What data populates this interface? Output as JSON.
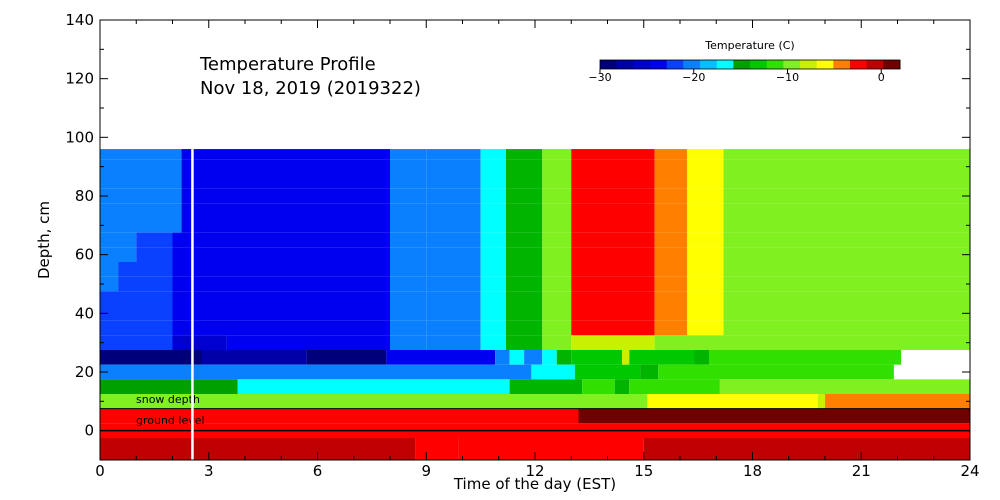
{
  "chart_data": {
    "type": "heatmap",
    "title": "Temperature Profile",
    "subtitle": "Nov 18, 2019 (2019322)",
    "xlabel": "Time of the day (EST)",
    "ylabel": "Depth, cm",
    "xlim": [
      0,
      24
    ],
    "ylim": [
      -10,
      140
    ],
    "x_ticks": [
      0,
      3,
      6,
      9,
      12,
      15,
      18,
      21,
      24
    ],
    "y_ticks": [
      0,
      20,
      40,
      60,
      80,
      100,
      120,
      140
    ],
    "colorbar": {
      "label": "Temperature (C)",
      "range": [
        -30,
        2
      ],
      "ticks": [
        -30,
        -20,
        -10,
        0
      ],
      "colors": [
        "#00007a",
        "#0000a8",
        "#0000d0",
        "#0000f0",
        "#0a40ff",
        "#0a80ff",
        "#00c0ff",
        "#00ffff",
        "#00a000",
        "#00c800",
        "#32e000",
        "#80f020",
        "#c8f000",
        "#ffff00",
        "#ff8000",
        "#ff0000",
        "#c00000",
        "#700000"
      ]
    },
    "annotations": [
      "snow depth",
      "ground level"
    ],
    "current_time_marker": 2.55,
    "rows": [
      {
        "depth": 95,
        "segments": [
          [
            0,
            2.25,
            "#0a80ff"
          ],
          [
            2.25,
            8,
            "#0000f0"
          ],
          [
            8,
            9,
            "#0a80ff"
          ],
          [
            9,
            10.5,
            "#0a80ff"
          ],
          [
            10.5,
            11.2,
            "#00ffff"
          ],
          [
            11.2,
            12.2,
            "#00b400"
          ],
          [
            12.2,
            13,
            "#80f020"
          ],
          [
            13,
            15.3,
            "#ff0000"
          ],
          [
            15.3,
            16.2,
            "#ff8000"
          ],
          [
            16.2,
            17.2,
            "#ffff00"
          ],
          [
            17.2,
            24,
            "#80f020"
          ]
        ]
      },
      {
        "depth": 90,
        "segments": [
          [
            0,
            2.25,
            "#0a80ff"
          ],
          [
            2.25,
            8,
            "#0000f0"
          ],
          [
            8,
            9,
            "#0a80ff"
          ],
          [
            9,
            10.5,
            "#0a80ff"
          ],
          [
            10.5,
            11.2,
            "#00ffff"
          ],
          [
            11.2,
            12.2,
            "#00b400"
          ],
          [
            12.2,
            13,
            "#80f020"
          ],
          [
            13,
            15.3,
            "#ff0000"
          ],
          [
            15.3,
            16.2,
            "#ff8000"
          ],
          [
            16.2,
            17.2,
            "#ffff00"
          ],
          [
            17.2,
            24,
            "#80f020"
          ]
        ]
      },
      {
        "depth": 85,
        "segments": [
          [
            0,
            2.25,
            "#0a80ff"
          ],
          [
            2.25,
            8,
            "#0000f0"
          ],
          [
            8,
            9,
            "#0a80ff"
          ],
          [
            9,
            10.5,
            "#0a80ff"
          ],
          [
            10.5,
            11.2,
            "#00ffff"
          ],
          [
            11.2,
            12.2,
            "#00b400"
          ],
          [
            12.2,
            13,
            "#80f020"
          ],
          [
            13,
            15.3,
            "#ff0000"
          ],
          [
            15.3,
            16.2,
            "#ff8000"
          ],
          [
            16.2,
            17.2,
            "#ffff00"
          ],
          [
            17.2,
            24,
            "#80f020"
          ]
        ]
      },
      {
        "depth": 80,
        "segments": [
          [
            0,
            2.25,
            "#0a80ff"
          ],
          [
            2.25,
            8,
            "#0000f0"
          ],
          [
            8,
            9,
            "#0a80ff"
          ],
          [
            9,
            10.5,
            "#0a80ff"
          ],
          [
            10.5,
            11.2,
            "#00ffff"
          ],
          [
            11.2,
            12.2,
            "#00b400"
          ],
          [
            12.2,
            13,
            "#80f020"
          ],
          [
            13,
            15.3,
            "#ff0000"
          ],
          [
            15.3,
            16.2,
            "#ff8000"
          ],
          [
            16.2,
            17.2,
            "#ffff00"
          ],
          [
            17.2,
            24,
            "#80f020"
          ]
        ]
      },
      {
        "depth": 75,
        "segments": [
          [
            0,
            2.25,
            "#0a80ff"
          ],
          [
            2.25,
            8,
            "#0000f0"
          ],
          [
            8,
            9,
            "#0a80ff"
          ],
          [
            9,
            10.5,
            "#0a80ff"
          ],
          [
            10.5,
            11.2,
            "#00ffff"
          ],
          [
            11.2,
            12.2,
            "#00b400"
          ],
          [
            12.2,
            13,
            "#80f020"
          ],
          [
            13,
            15.3,
            "#ff0000"
          ],
          [
            15.3,
            16.2,
            "#ff8000"
          ],
          [
            16.2,
            17.2,
            "#ffff00"
          ],
          [
            17.2,
            24,
            "#80f020"
          ]
        ]
      },
      {
        "depth": 70,
        "segments": [
          [
            0,
            2.25,
            "#0a80ff"
          ],
          [
            2.25,
            8,
            "#0000f0"
          ],
          [
            8,
            9,
            "#0a80ff"
          ],
          [
            9,
            10.5,
            "#0a80ff"
          ],
          [
            10.5,
            11.2,
            "#00ffff"
          ],
          [
            11.2,
            12.2,
            "#00b400"
          ],
          [
            12.2,
            13,
            "#80f020"
          ],
          [
            13,
            15.3,
            "#ff0000"
          ],
          [
            15.3,
            16.2,
            "#ff8000"
          ],
          [
            16.2,
            17.2,
            "#ffff00"
          ],
          [
            17.2,
            24,
            "#80f020"
          ]
        ]
      },
      {
        "depth": 65,
        "segments": [
          [
            0,
            1,
            "#0a80ff"
          ],
          [
            1,
            2,
            "#0a40ff"
          ],
          [
            2,
            8,
            "#0000f0"
          ],
          [
            8,
            9,
            "#0a80ff"
          ],
          [
            9,
            10.5,
            "#0a80ff"
          ],
          [
            10.5,
            11.2,
            "#00ffff"
          ],
          [
            11.2,
            12.2,
            "#00b400"
          ],
          [
            12.2,
            13,
            "#80f020"
          ],
          [
            13,
            15.3,
            "#ff0000"
          ],
          [
            15.3,
            16.2,
            "#ff8000"
          ],
          [
            16.2,
            17.2,
            "#ffff00"
          ],
          [
            17.2,
            24,
            "#80f020"
          ]
        ]
      },
      {
        "depth": 60,
        "segments": [
          [
            0,
            1,
            "#0a80ff"
          ],
          [
            1,
            2,
            "#0a40ff"
          ],
          [
            2,
            8,
            "#0000f0"
          ],
          [
            8,
            9,
            "#0a80ff"
          ],
          [
            9,
            10.5,
            "#0a80ff"
          ],
          [
            10.5,
            11.2,
            "#00ffff"
          ],
          [
            11.2,
            12.2,
            "#00b400"
          ],
          [
            12.2,
            13,
            "#80f020"
          ],
          [
            13,
            15.3,
            "#ff0000"
          ],
          [
            15.3,
            16.2,
            "#ff8000"
          ],
          [
            16.2,
            17.2,
            "#ffff00"
          ],
          [
            17.2,
            24,
            "#80f020"
          ]
        ]
      },
      {
        "depth": 55,
        "segments": [
          [
            0,
            0.5,
            "#0a80ff"
          ],
          [
            0.5,
            2,
            "#0a40ff"
          ],
          [
            2,
            8,
            "#0000f0"
          ],
          [
            8,
            9,
            "#0a80ff"
          ],
          [
            9,
            10.5,
            "#0a80ff"
          ],
          [
            10.5,
            11.2,
            "#00ffff"
          ],
          [
            11.2,
            12.2,
            "#00b400"
          ],
          [
            12.2,
            13,
            "#80f020"
          ],
          [
            13,
            15.3,
            "#ff0000"
          ],
          [
            15.3,
            16.2,
            "#ff8000"
          ],
          [
            16.2,
            17.2,
            "#ffff00"
          ],
          [
            17.2,
            24,
            "#80f020"
          ]
        ]
      },
      {
        "depth": 50,
        "segments": [
          [
            0,
            0.5,
            "#0a80ff"
          ],
          [
            0.5,
            2,
            "#0a40ff"
          ],
          [
            2,
            8,
            "#0000f0"
          ],
          [
            8,
            9,
            "#0a80ff"
          ],
          [
            9,
            10.5,
            "#0a80ff"
          ],
          [
            10.5,
            11.2,
            "#00ffff"
          ],
          [
            11.2,
            12.2,
            "#00b400"
          ],
          [
            12.2,
            13,
            "#80f020"
          ],
          [
            13,
            15.3,
            "#ff0000"
          ],
          [
            15.3,
            16.2,
            "#ff8000"
          ],
          [
            16.2,
            17.2,
            "#ffff00"
          ],
          [
            17.2,
            24,
            "#80f020"
          ]
        ]
      },
      {
        "depth": 45,
        "segments": [
          [
            0,
            2,
            "#0a40ff"
          ],
          [
            2,
            8,
            "#0000f0"
          ],
          [
            8,
            9,
            "#0a80ff"
          ],
          [
            9,
            10.5,
            "#0a80ff"
          ],
          [
            10.5,
            11.2,
            "#00ffff"
          ],
          [
            11.2,
            12.2,
            "#00b400"
          ],
          [
            12.2,
            13,
            "#80f020"
          ],
          [
            13,
            15.3,
            "#ff0000"
          ],
          [
            15.3,
            16.2,
            "#ff8000"
          ],
          [
            16.2,
            17.2,
            "#ffff00"
          ],
          [
            17.2,
            24,
            "#80f020"
          ]
        ]
      },
      {
        "depth": 40,
        "segments": [
          [
            0,
            2,
            "#0a40ff"
          ],
          [
            2,
            8,
            "#0000f0"
          ],
          [
            8,
            9,
            "#0a80ff"
          ],
          [
            9,
            10.5,
            "#0a80ff"
          ],
          [
            10.5,
            11.2,
            "#00ffff"
          ],
          [
            11.2,
            12.2,
            "#00b400"
          ],
          [
            12.2,
            13,
            "#80f020"
          ],
          [
            13,
            15.3,
            "#ff0000"
          ],
          [
            15.3,
            16.2,
            "#ff8000"
          ],
          [
            16.2,
            17.2,
            "#ffff00"
          ],
          [
            17.2,
            24,
            "#80f020"
          ]
        ]
      },
      {
        "depth": 35,
        "segments": [
          [
            0,
            2,
            "#0a40ff"
          ],
          [
            2,
            8,
            "#0000f0"
          ],
          [
            8,
            9,
            "#0a80ff"
          ],
          [
            9,
            10.5,
            "#0a80ff"
          ],
          [
            10.5,
            11.2,
            "#00ffff"
          ],
          [
            11.2,
            12.2,
            "#00b400"
          ],
          [
            12.2,
            13,
            "#80f020"
          ],
          [
            13,
            15.3,
            "#ff0000"
          ],
          [
            15.3,
            16.2,
            "#ff8000"
          ],
          [
            16.2,
            17.2,
            "#ffff00"
          ],
          [
            17.2,
            24,
            "#80f020"
          ]
        ]
      },
      {
        "depth": 30,
        "segments": [
          [
            0,
            2,
            "#0a40ff"
          ],
          [
            2,
            3.5,
            "#0000d0"
          ],
          [
            3.5,
            8,
            "#0000f0"
          ],
          [
            8,
            9,
            "#0a80ff"
          ],
          [
            9,
            10.5,
            "#0a80ff"
          ],
          [
            10.5,
            11.2,
            "#00ffff"
          ],
          [
            11.2,
            12.2,
            "#00b400"
          ],
          [
            12.2,
            13,
            "#80f020"
          ],
          [
            13,
            15.3,
            "#c8f000"
          ],
          [
            15.3,
            24,
            "#80f020"
          ]
        ]
      },
      {
        "depth": 25,
        "segments": [
          [
            0,
            2.8,
            "#00007a"
          ],
          [
            2.8,
            5.7,
            "#0000a8"
          ],
          [
            5.7,
            7.9,
            "#00007a"
          ],
          [
            7.9,
            10.9,
            "#0000f0"
          ],
          [
            10.9,
            11.3,
            "#0a80ff"
          ],
          [
            11.3,
            11.7,
            "#00ffff"
          ],
          [
            11.7,
            12.2,
            "#0a80ff"
          ],
          [
            12.2,
            12.6,
            "#00ffff"
          ],
          [
            12.6,
            13,
            "#00b400"
          ],
          [
            13,
            14.4,
            "#00c800"
          ],
          [
            14.4,
            14.6,
            "#c8f000"
          ],
          [
            14.6,
            16.4,
            "#00c800"
          ],
          [
            16.4,
            16.8,
            "#00b400"
          ],
          [
            16.8,
            22.1,
            "#32e000"
          ]
        ]
      },
      {
        "depth": 20,
        "segments": [
          [
            0,
            11.9,
            "#0a80ff"
          ],
          [
            11.9,
            13.1,
            "#00ffff"
          ],
          [
            13.1,
            14.9,
            "#00c800"
          ],
          [
            14.9,
            15.4,
            "#00b400"
          ],
          [
            15.4,
            21.9,
            "#32e000"
          ]
        ]
      },
      {
        "depth": 15,
        "segments": [
          [
            0,
            3.8,
            "#00a000"
          ],
          [
            3.8,
            11.3,
            "#00ffff"
          ],
          [
            11.3,
            13.3,
            "#00b400"
          ],
          [
            13.3,
            14.2,
            "#32e000"
          ],
          [
            14.2,
            14.6,
            "#00b400"
          ],
          [
            14.6,
            17.1,
            "#32e000"
          ],
          [
            17.1,
            24,
            "#80f020"
          ]
        ]
      },
      {
        "depth": 10,
        "segments": [
          [
            0,
            15.1,
            "#80f020"
          ],
          [
            15.1,
            19.8,
            "#ffff00"
          ],
          [
            19.8,
            20,
            "#c8f000"
          ],
          [
            20,
            24,
            "#ff8000"
          ]
        ]
      },
      {
        "depth": 5,
        "segments": [
          [
            0,
            13.2,
            "#ff0000"
          ],
          [
            13.2,
            24,
            "#700000"
          ]
        ]
      },
      {
        "depth": 0,
        "segments": [
          [
            0,
            24,
            "#ff0000"
          ]
        ]
      },
      {
        "depth": -5,
        "segments": [
          [
            0,
            8.7,
            "#c00000"
          ],
          [
            8.7,
            9.9,
            "#ff0000"
          ],
          [
            9.9,
            15,
            "#ff0000"
          ],
          [
            15,
            24,
            "#c00000"
          ]
        ]
      }
    ],
    "snow_depth": 7.5,
    "ground_level": 0
  }
}
